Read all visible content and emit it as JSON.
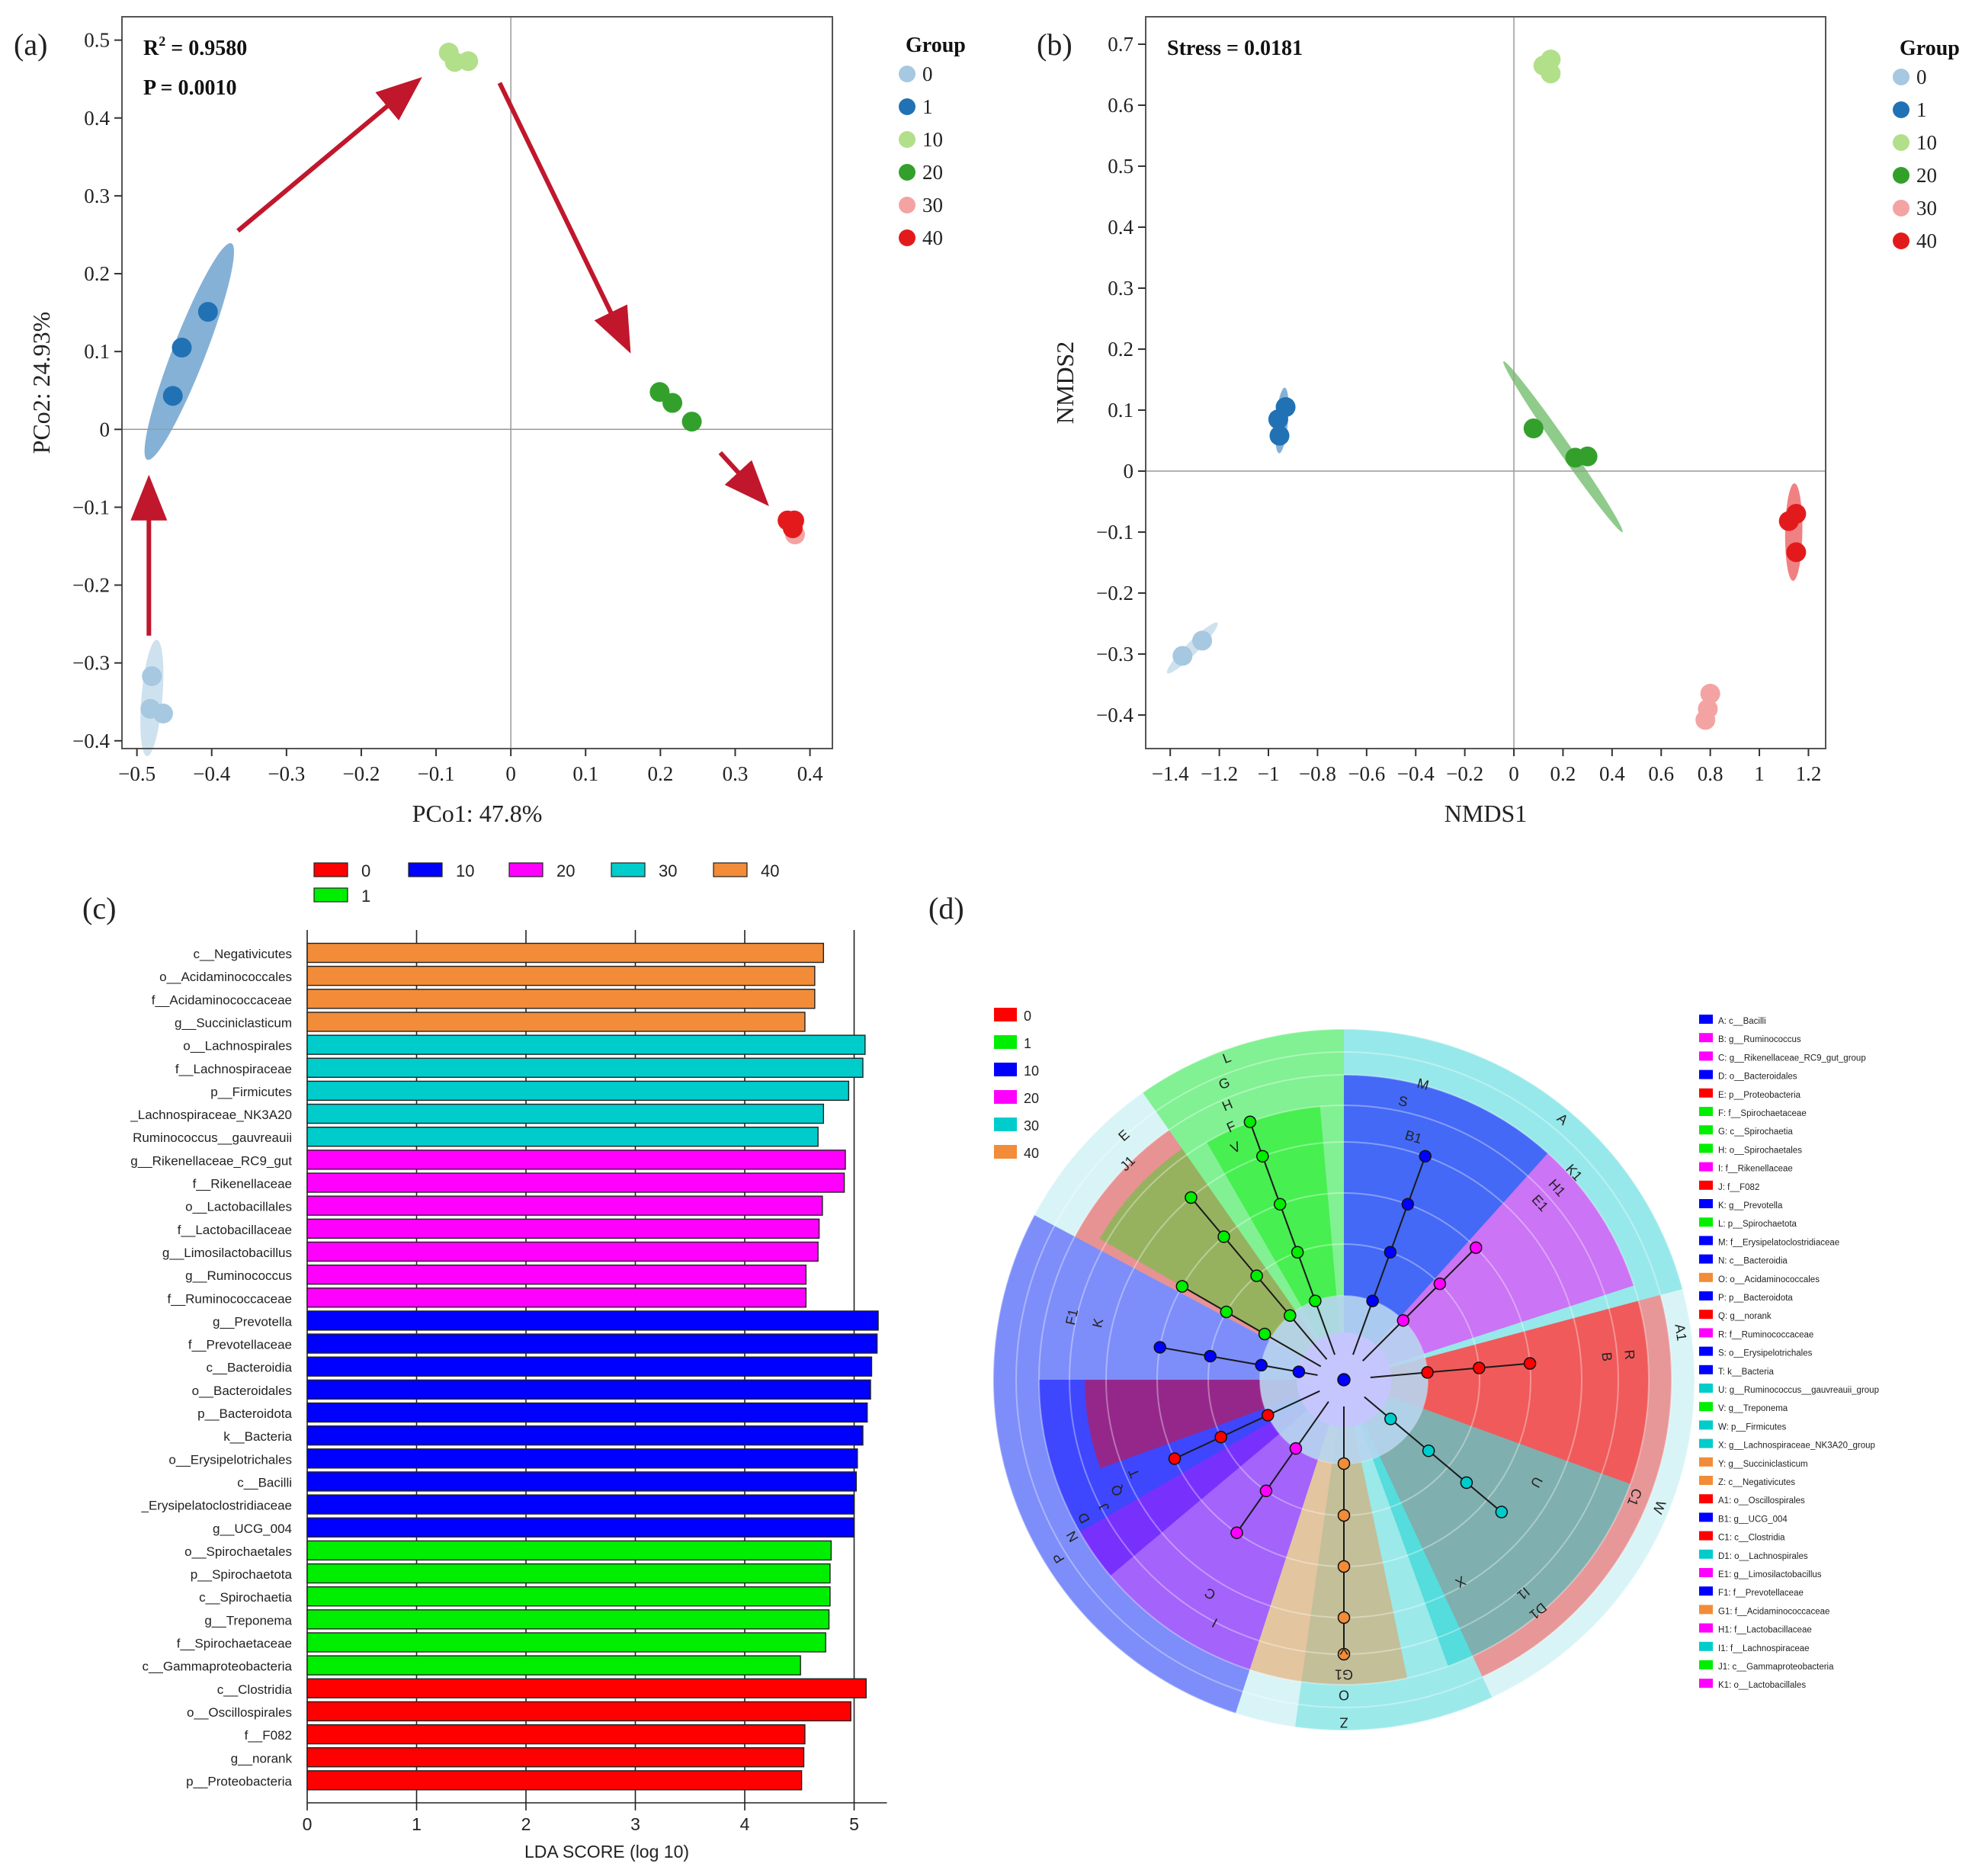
{
  "chart_data": [
    {
      "panel": "(a)",
      "type": "scatter",
      "title": "",
      "xlabel": "PCo1: 47.8%",
      "ylabel": "PCo2: 24.93%",
      "xlim": [
        -0.52,
        0.43
      ],
      "ylim": [
        -0.41,
        0.53
      ],
      "xticks": [
        -0.5,
        -0.4,
        -0.3,
        -0.2,
        -0.1,
        0,
        0.1,
        0.2,
        0.3,
        0.4
      ],
      "yticks": [
        -0.4,
        -0.3,
        -0.2,
        -0.1,
        0,
        0.1,
        0.2,
        0.3,
        0.4,
        0.5
      ],
      "annotations": [
        "R² = 0.9580",
        "P = 0.0010"
      ],
      "legend_title": "Group",
      "series": [
        {
          "name": "0",
          "color": "#a6c8e0",
          "points": [
            [
              -0.48,
              -0.317
            ],
            [
              -0.482,
              -0.359
            ],
            [
              -0.465,
              -0.365
            ]
          ],
          "ellipse": {
            "cx": -0.48,
            "cy": -0.345,
            "rx": 0.075,
            "ry": 0.014,
            "angle": 85
          }
        },
        {
          "name": "1",
          "color": "#2171b5",
          "points": [
            [
              -0.405,
              0.151
            ],
            [
              -0.44,
              0.105
            ],
            [
              -0.452,
              0.043
            ]
          ],
          "ellipse": {
            "cx": -0.43,
            "cy": 0.1,
            "rx": 0.15,
            "ry": 0.022,
            "angle": 68
          }
        },
        {
          "name": "10",
          "color": "#b2df8a",
          "points": [
            [
              -0.083,
              0.484
            ],
            [
              -0.075,
              0.472
            ],
            [
              -0.057,
              0.473
            ]
          ]
        },
        {
          "name": "20",
          "color": "#33a02c",
          "points": [
            [
              0.199,
              0.048
            ],
            [
              0.216,
              0.034
            ],
            [
              0.242,
              0.01
            ]
          ]
        },
        {
          "name": "30",
          "color": "#f4a3a3",
          "points": [
            [
              0.377,
              -0.125
            ],
            [
              0.38,
              -0.135
            ]
          ]
        },
        {
          "name": "40",
          "color": "#e31a1c",
          "points": [
            [
              0.37,
              -0.117
            ],
            [
              0.379,
              -0.117
            ],
            [
              0.377,
              -0.127
            ]
          ]
        }
      ],
      "arrows": [
        {
          "from": [
            -0.484,
            -0.265
          ],
          "to": [
            -0.484,
            -0.07
          ]
        },
        {
          "from": [
            -0.365,
            0.255
          ],
          "to": [
            -0.128,
            0.445
          ]
        },
        {
          "from": [
            -0.015,
            0.445
          ],
          "to": [
            0.155,
            0.108
          ]
        },
        {
          "from": [
            0.28,
            -0.03
          ],
          "to": [
            0.337,
            -0.09
          ]
        }
      ]
    },
    {
      "panel": "(b)",
      "type": "scatter",
      "title": "",
      "xlabel": "NMDS1",
      "ylabel": "NMDS2",
      "xlim": [
        -1.5,
        1.27
      ],
      "ylim": [
        -0.455,
        0.745
      ],
      "xticks": [
        -1.4,
        -1.2,
        -1.0,
        -0.8,
        -0.6,
        -0.4,
        -0.2,
        0,
        0.2,
        0.4,
        0.6,
        0.8,
        1.0,
        1.2
      ],
      "xtick_labels": [
        "−1.4",
        "−1.2",
        "−1",
        "−0.8",
        "−0.6",
        "−0.4",
        "−0.2",
        "0",
        "0.2",
        "0.4",
        "0.6",
        "0.8",
        "1",
        "1.2"
      ],
      "yticks": [
        -0.4,
        -0.3,
        -0.2,
        -0.1,
        0,
        0.1,
        0.2,
        0.3,
        0.4,
        0.5,
        0.6,
        0.7
      ],
      "annotations": [
        "Stress = 0.0181"
      ],
      "legend_title": "Group",
      "series": [
        {
          "name": "0",
          "color": "#a6c8e0",
          "points": [
            [
              -1.35,
              -0.303
            ],
            [
              -1.27,
              -0.278
            ]
          ],
          "ellipse": {
            "cx": -1.31,
            "cy": -0.29,
            "rx": 0.11,
            "ry": 0.007,
            "angle": 22
          }
        },
        {
          "name": "1",
          "color": "#2171b5",
          "points": [
            [
              -0.93,
              0.105
            ],
            [
              -0.96,
              0.085
            ],
            [
              -0.955,
              0.058
            ]
          ],
          "ellipse": {
            "cx": -0.945,
            "cy": 0.083,
            "rx": 0.055,
            "ry": 0.014,
            "angle": 78
          }
        },
        {
          "name": "10",
          "color": "#b2df8a",
          "points": [
            [
              0.15,
              0.675
            ],
            [
              0.12,
              0.665
            ],
            [
              0.15,
              0.652
            ]
          ]
        },
        {
          "name": "20",
          "color": "#33a02c",
          "points": [
            [
              0.08,
              0.07
            ],
            [
              0.25,
              0.022
            ],
            [
              0.3,
              0.024
            ]
          ],
          "ellipse": {
            "cx": 0.2,
            "cy": 0.04,
            "rx": 0.28,
            "ry": 0.012,
            "angle": -30
          }
        },
        {
          "name": "30",
          "color": "#f4a3a3",
          "points": [
            [
              0.8,
              -0.365
            ],
            [
              0.79,
              -0.39
            ],
            [
              0.78,
              -0.408
            ]
          ]
        },
        {
          "name": "40",
          "color": "#e31a1c",
          "points": [
            [
              1.12,
              -0.082
            ],
            [
              1.15,
              -0.07
            ],
            [
              1.15,
              -0.133
            ]
          ],
          "ellipse": {
            "cx": 1.14,
            "cy": -0.1,
            "rx": 0.08,
            "ry": 0.035,
            "angle": 88
          }
        }
      ]
    },
    {
      "panel": "(c)",
      "type": "bar",
      "orientation": "horizontal",
      "title": "",
      "xlabel": "LDA SCORE (log 10)",
      "ylabel": "",
      "xlim": [
        0,
        5.3
      ],
      "xticks": [
        0,
        1,
        2,
        3,
        4,
        5
      ],
      "legend": [
        {
          "name": "0",
          "color": "#ff0000"
        },
        {
          "name": "10",
          "color": "#0000ff"
        },
        {
          "name": "20",
          "color": "#ff00ff"
        },
        {
          "name": "30",
          "color": "#00cccc"
        },
        {
          "name": "40",
          "color": "#f28c38"
        },
        {
          "name": "1",
          "color": "#00ee00"
        }
      ],
      "bars": [
        {
          "label": "c__Negativicutes",
          "value": 4.72,
          "group": "40"
        },
        {
          "label": "o__Acidaminococcales",
          "value": 4.64,
          "group": "40"
        },
        {
          "label": "f__Acidaminococcaceae",
          "value": 4.64,
          "group": "40"
        },
        {
          "label": "g__Succiniclasticum",
          "value": 4.55,
          "group": "40"
        },
        {
          "label": "o__Lachnospirales",
          "value": 5.1,
          "group": "30"
        },
        {
          "label": "f__Lachnospiraceae",
          "value": 5.08,
          "group": "30"
        },
        {
          "label": "p__Firmicutes",
          "value": 4.95,
          "group": "30"
        },
        {
          "label": "_Lachnospiraceae_NK3A20",
          "value": 4.72,
          "group": "30"
        },
        {
          "label": "Ruminococcus__gauvreauii",
          "value": 4.67,
          "group": "30"
        },
        {
          "label": "g__Rikenellaceae_RC9_gut",
          "value": 4.92,
          "group": "20"
        },
        {
          "label": "f__Rikenellaceae",
          "value": 4.91,
          "group": "20"
        },
        {
          "label": "o__Lactobacillales",
          "value": 4.71,
          "group": "20"
        },
        {
          "label": "f__Lactobacillaceae",
          "value": 4.68,
          "group": "20"
        },
        {
          "label": "g__Limosilactobacillus",
          "value": 4.67,
          "group": "20"
        },
        {
          "label": "g__Ruminococcus",
          "value": 4.56,
          "group": "20"
        },
        {
          "label": "f__Ruminococcaceae",
          "value": 4.56,
          "group": "20"
        },
        {
          "label": "g__Prevotella",
          "value": 5.22,
          "group": "10"
        },
        {
          "label": "f__Prevotellaceae",
          "value": 5.21,
          "group": "10"
        },
        {
          "label": "c__Bacteroidia",
          "value": 5.16,
          "group": "10"
        },
        {
          "label": "o__Bacteroidales",
          "value": 5.15,
          "group": "10"
        },
        {
          "label": "p__Bacteroidota",
          "value": 5.12,
          "group": "10"
        },
        {
          "label": "k__Bacteria",
          "value": 5.08,
          "group": "10"
        },
        {
          "label": "o__Erysipelotrichales",
          "value": 5.03,
          "group": "10"
        },
        {
          "label": "c__Bacilli",
          "value": 5.02,
          "group": "10"
        },
        {
          "label": "_Erysipelatoclostridiaceae",
          "value": 5.0,
          "group": "10"
        },
        {
          "label": "g__UCG_004",
          "value": 5.0,
          "group": "10"
        },
        {
          "label": "o__Spirochaetales",
          "value": 4.79,
          "group": "1"
        },
        {
          "label": "p__Spirochaetota",
          "value": 4.78,
          "group": "1"
        },
        {
          "label": "c__Spirochaetia",
          "value": 4.78,
          "group": "1"
        },
        {
          "label": "g__Treponema",
          "value": 4.77,
          "group": "1"
        },
        {
          "label": "f__Spirochaetaceae",
          "value": 4.74,
          "group": "1"
        },
        {
          "label": "c__Gammaproteobacteria",
          "value": 4.51,
          "group": "1"
        },
        {
          "label": "c__Clostridia",
          "value": 5.11,
          "group": "0"
        },
        {
          "label": "o__Oscillospirales",
          "value": 4.97,
          "group": "0"
        },
        {
          "label": "f__F082",
          "value": 4.55,
          "group": "0"
        },
        {
          "label": "g__norank",
          "value": 4.54,
          "group": "0"
        },
        {
          "label": "p__Proteobacteria",
          "value": 4.52,
          "group": "0"
        }
      ]
    },
    {
      "panel": "(d)",
      "type": "cladogram",
      "legend": [
        {
          "name": "0",
          "color": "#ff0000"
        },
        {
          "name": "1",
          "color": "#00ee00"
        },
        {
          "name": "10",
          "color": "#0000ff"
        },
        {
          "name": "20",
          "color": "#ff00ff"
        },
        {
          "name": "30",
          "color": "#00cccc"
        },
        {
          "name": "40",
          "color": "#f28c38"
        }
      ],
      "taxa_legend": [
        {
          "code": "A",
          "text": "A: c__Bacilli",
          "group": "10"
        },
        {
          "code": "B",
          "text": "B: g__Ruminococcus",
          "group": "20"
        },
        {
          "code": "C",
          "text": "C: g__Rikenellaceae_RC9_gut_group",
          "group": "20"
        },
        {
          "code": "D",
          "text": "D: o__Bacteroidales",
          "group": "10"
        },
        {
          "code": "E",
          "text": "E: p__Proteobacteria",
          "group": "0"
        },
        {
          "code": "F",
          "text": "F: f__Spirochaetaceae",
          "group": "1"
        },
        {
          "code": "G",
          "text": "G: c__Spirochaetia",
          "group": "1"
        },
        {
          "code": "H",
          "text": "H: o__Spirochaetales",
          "group": "1"
        },
        {
          "code": "I",
          "text": "I: f__Rikenellaceae",
          "group": "20"
        },
        {
          "code": "J",
          "text": "J: f__F082",
          "group": "0"
        },
        {
          "code": "K",
          "text": "K: g__Prevotella",
          "group": "10"
        },
        {
          "code": "L",
          "text": "L: p__Spirochaetota",
          "group": "1"
        },
        {
          "code": "M",
          "text": "M: f__Erysipelatoclostridiaceae",
          "group": "10"
        },
        {
          "code": "N",
          "text": "N: c__Bacteroidia",
          "group": "10"
        },
        {
          "code": "O",
          "text": "O: o__Acidaminococcales",
          "group": "40"
        },
        {
          "code": "P",
          "text": "P: p__Bacteroidota",
          "group": "10"
        },
        {
          "code": "Q",
          "text": "Q: g__norank",
          "group": "0"
        },
        {
          "code": "R",
          "text": "R: f__Ruminococcaceae",
          "group": "20"
        },
        {
          "code": "S",
          "text": "S: o__Erysipelotrichales",
          "group": "10"
        },
        {
          "code": "T",
          "text": "T: k__Bacteria",
          "group": "10"
        },
        {
          "code": "U",
          "text": "U: g__Ruminococcus__gauvreauii_group",
          "group": "30"
        },
        {
          "code": "V",
          "text": "V: g__Treponema",
          "group": "1"
        },
        {
          "code": "W",
          "text": "W: p__Firmicutes",
          "group": "30"
        },
        {
          "code": "X",
          "text": "X: g__Lachnospiraceae_NK3A20_group",
          "group": "30"
        },
        {
          "code": "Y",
          "text": "Y: g__Succiniclasticum",
          "group": "40"
        },
        {
          "code": "Z",
          "text": "Z: c__Negativicutes",
          "group": "40"
        },
        {
          "code": "A1",
          "text": "A1: o__Oscillospirales",
          "group": "0"
        },
        {
          "code": "B1",
          "text": "B1: g__UCG_004",
          "group": "10"
        },
        {
          "code": "C1",
          "text": "C1: c__Clostridia",
          "group": "0"
        },
        {
          "code": "D1",
          "text": "D1: o__Lachnospirales",
          "group": "30"
        },
        {
          "code": "E1",
          "text": "E1: g__Limosilactobacillus",
          "group": "20"
        },
        {
          "code": "F1",
          "text": "F1: f__Prevotellaceae",
          "group": "10"
        },
        {
          "code": "G1",
          "text": "G1: f__Acidaminococcaceae",
          "group": "40"
        },
        {
          "code": "H1",
          "text": "H1: f__Lactobacillaceae",
          "group": "20"
        },
        {
          "code": "I1",
          "text": "I1: f__Lachnospiraceae",
          "group": "30"
        },
        {
          "code": "J1",
          "text": "J1: c__Gammaproteobacteria",
          "group": "1"
        },
        {
          "code": "K1",
          "text": "K1: o__Lactobacillales",
          "group": "20"
        }
      ]
    }
  ],
  "labels": {
    "panel_a": "(a)",
    "panel_b": "(b)",
    "panel_c": "(c)",
    "panel_d": "(d)"
  }
}
